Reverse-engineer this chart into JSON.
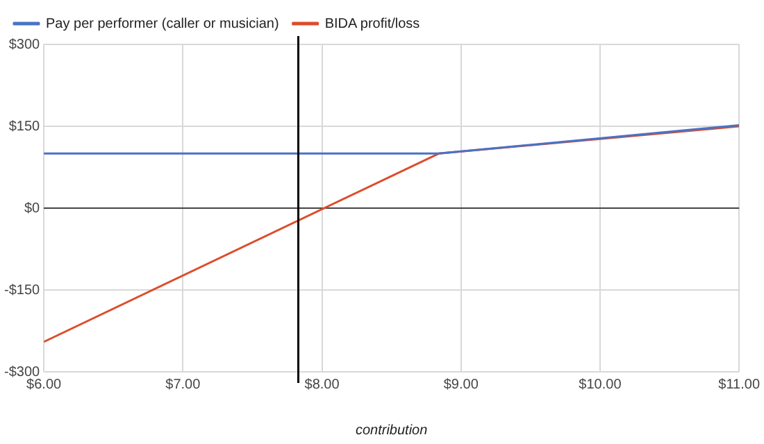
{
  "chart_data": {
    "type": "line",
    "xlabel": "contribution",
    "x": [
      6,
      8.84,
      11
    ],
    "series": [
      {
        "name": "Pay per performer (caller or musician)",
        "color": "#4a72c4",
        "values": [
          100,
          100,
          152
        ]
      },
      {
        "name": "BIDA profit/loss",
        "color": "#dc4d2c",
        "values": [
          -245,
          100,
          150
        ]
      }
    ],
    "xlim": [
      6,
      11
    ],
    "xticks": [
      {
        "value": 6,
        "label": "$6.00"
      },
      {
        "value": 7,
        "label": "$7.00"
      },
      {
        "value": 8,
        "label": "$8.00"
      },
      {
        "value": 9,
        "label": "$9.00"
      },
      {
        "value": 10,
        "label": "$10.00"
      },
      {
        "value": 11,
        "label": "$11.00"
      }
    ],
    "ylim": [
      -300,
      300
    ],
    "yticks": [
      {
        "value": -300,
        "label": "-$300"
      },
      {
        "value": -150,
        "label": "-$150"
      },
      {
        "value": 0,
        "label": "$0"
      },
      {
        "value": 150,
        "label": "$150"
      },
      {
        "value": 300,
        "label": "$300"
      }
    ],
    "ref_lines": [
      {
        "axis": "x",
        "value": 7.83,
        "color": "#000000"
      }
    ],
    "grid": true,
    "legend": "top left",
    "marker": "none",
    "line_style": "solid"
  }
}
